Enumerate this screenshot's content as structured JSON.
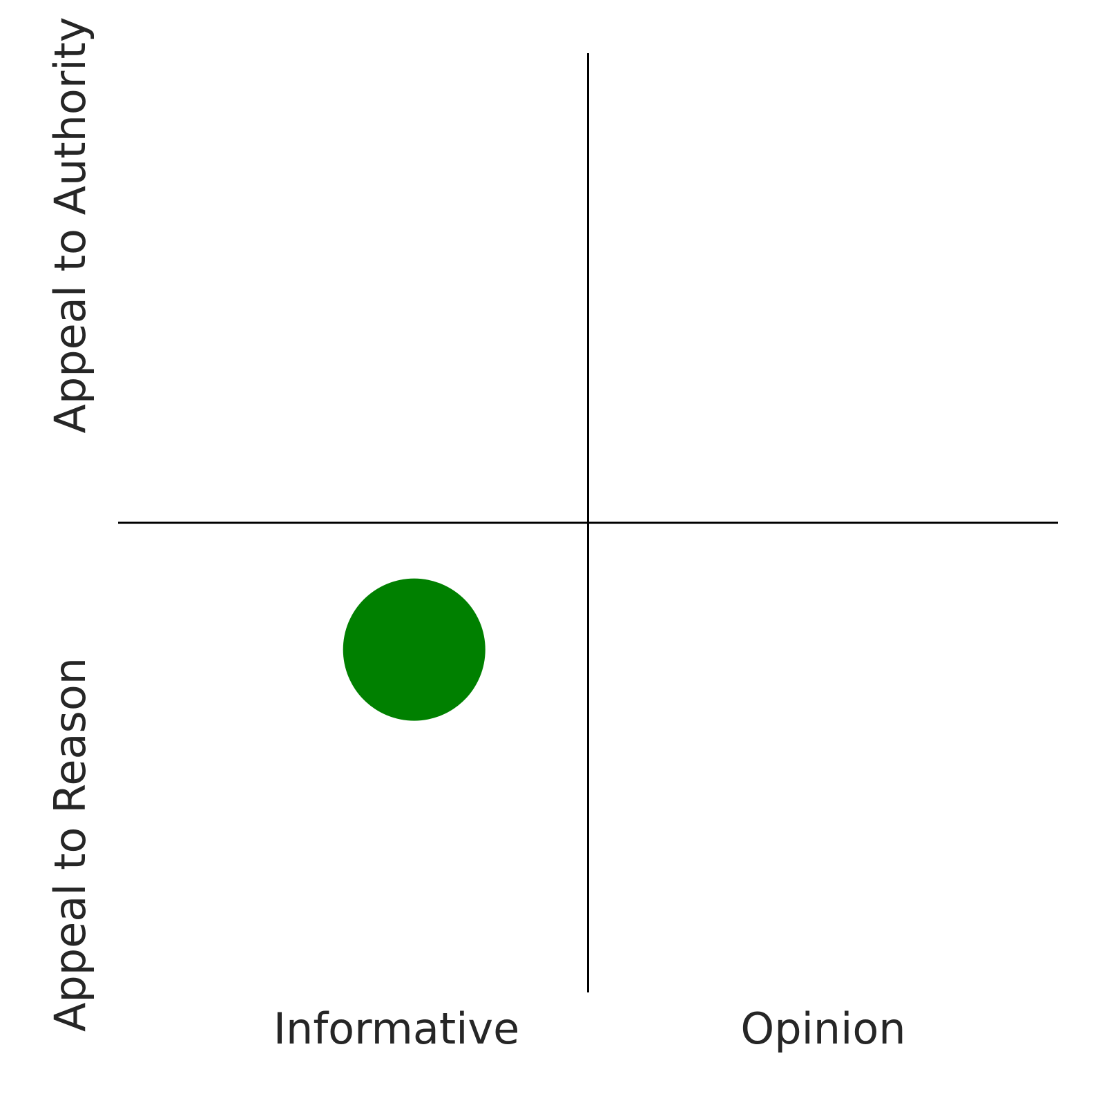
{
  "chart_data": {
    "type": "scatter",
    "x_labels": [
      "Informative",
      "Opinion"
    ],
    "y_labels": [
      "Appeal to Reason",
      "Appeal to Authority"
    ],
    "series": [
      {
        "color": "#008000",
        "x": [
          -0.37
        ],
        "values": [
          -0.27
        ]
      }
    ],
    "xlim": [
      -1,
      1
    ],
    "ylim": [
      -1,
      1
    ]
  }
}
